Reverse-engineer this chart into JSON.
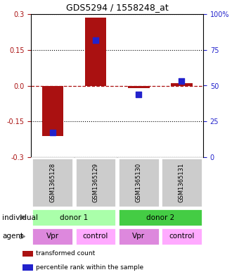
{
  "title": "GDS5294 / 1558248_at",
  "samples": [
    "GSM1365128",
    "GSM1365129",
    "GSM1365130",
    "GSM1365131"
  ],
  "bar_values": [
    -0.21,
    0.285,
    -0.01,
    0.01
  ],
  "percentile_values": [
    17,
    82,
    44,
    53
  ],
  "bar_color": "#aa1111",
  "dot_color": "#2222cc",
  "ylim_left": [
    -0.3,
    0.3
  ],
  "ylim_right": [
    0,
    100
  ],
  "yticks_left": [
    -0.3,
    -0.15,
    0.0,
    0.15,
    0.3
  ],
  "yticks_right": [
    0,
    25,
    50,
    75,
    100
  ],
  "ytick_labels_right": [
    "0",
    "25",
    "50",
    "75",
    "100%"
  ],
  "hline_dotted": [
    0.15,
    -0.15
  ],
  "individual_groups": [
    {
      "label": "donor 1",
      "span": [
        0,
        2
      ],
      "color": "#aaffaa"
    },
    {
      "label": "donor 2",
      "span": [
        2,
        4
      ],
      "color": "#44cc44"
    }
  ],
  "agent_groups": [
    {
      "label": "Vpr",
      "span": [
        0,
        1
      ],
      "color": "#dd88dd"
    },
    {
      "label": "control",
      "span": [
        1,
        2
      ],
      "color": "#ffaaff"
    },
    {
      "label": "Vpr",
      "span": [
        2,
        3
      ],
      "color": "#dd88dd"
    },
    {
      "label": "control",
      "span": [
        3,
        4
      ],
      "color": "#ffaaff"
    }
  ],
  "sample_box_color": "#cccccc",
  "legend_items": [
    {
      "color": "#aa1111",
      "label": "transformed count"
    },
    {
      "color": "#2222cc",
      "label": "percentile rank within the sample"
    }
  ],
  "bar_width": 0.5
}
